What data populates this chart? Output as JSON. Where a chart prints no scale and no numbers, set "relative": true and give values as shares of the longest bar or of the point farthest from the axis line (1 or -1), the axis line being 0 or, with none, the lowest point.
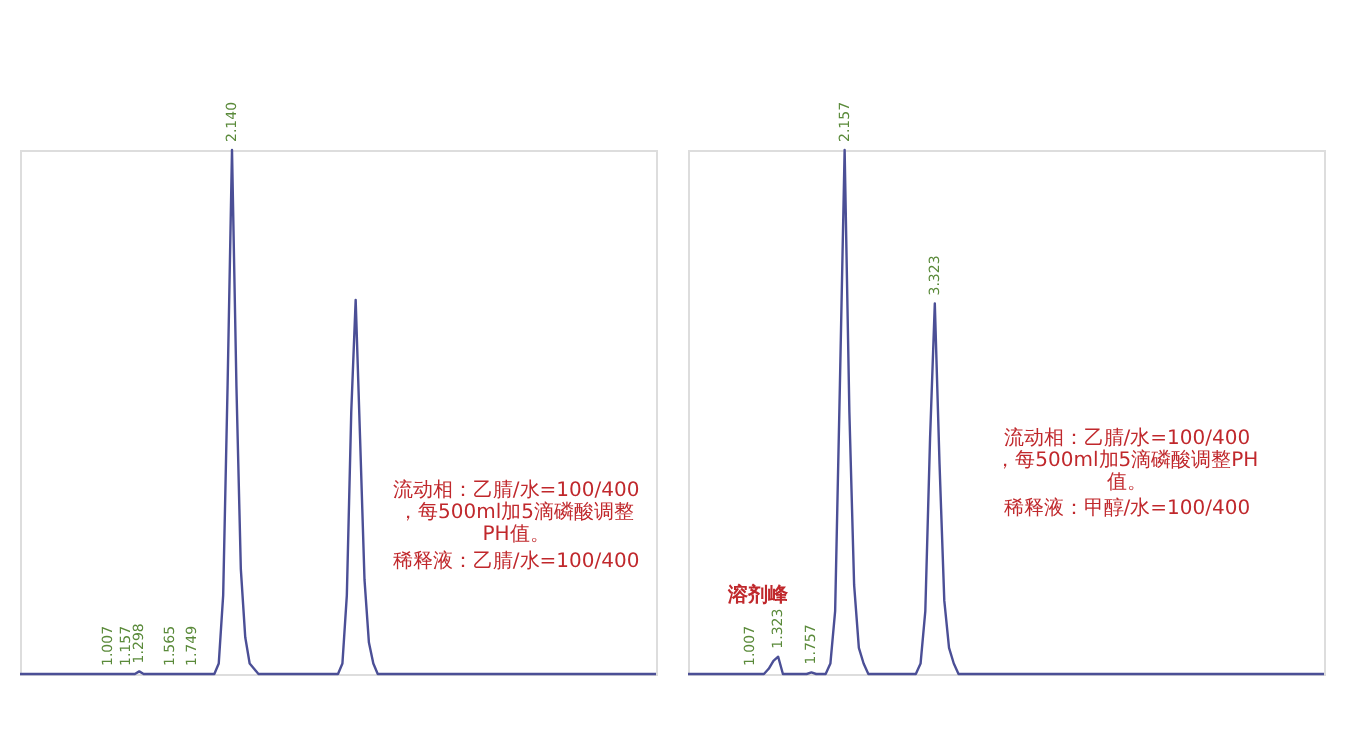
{
  "chart_data": [
    {
      "type": "line",
      "relative": true,
      "tick_labels": false,
      "grid": false,
      "legend": false,
      "marker": "none",
      "categories": [
        null,
        null,
        null,
        null,
        null,
        null,
        null,
        null,
        null,
        null,
        null,
        null,
        null,
        null,
        null,
        null,
        null,
        null,
        null,
        null,
        null,
        null,
        null,
        null,
        null,
        null,
        null,
        null,
        null,
        null,
        null,
        null,
        null,
        null,
        null,
        null,
        null,
        null,
        null,
        null,
        null,
        null,
        null,
        null,
        null,
        null,
        null,
        null,
        null,
        null,
        null,
        null,
        null,
        null,
        null,
        null,
        null,
        null,
        null,
        null,
        null,
        null,
        null,
        null,
        null,
        null,
        null,
        null,
        null,
        null,
        null,
        null,
        null,
        null,
        null,
        null,
        null,
        null,
        null,
        null,
        null,
        null,
        null,
        null,
        null,
        null,
        null,
        null,
        null,
        null,
        null,
        null,
        null,
        null,
        null,
        null,
        null,
        null,
        null,
        null,
        null,
        null,
        null,
        null,
        null,
        null,
        null,
        null,
        null,
        null,
        null,
        null,
        null,
        null,
        null,
        null,
        null,
        null,
        null,
        null,
        null,
        null,
        null,
        null,
        null,
        null,
        null,
        null,
        null,
        null,
        null,
        null,
        null,
        null,
        null,
        null,
        null,
        null,
        null,
        null,
        null,
        null,
        null,
        null,
        null
      ],
      "series": [
        {
          "color": "#4b4f96",
          "values": [
            0,
            0,
            0,
            0,
            0,
            0,
            0,
            0,
            0,
            0,
            0,
            0,
            0,
            0,
            0,
            0,
            0,
            0,
            0,
            0,
            0,
            0,
            0,
            0,
            0,
            0,
            0,
            0.005,
            0,
            0,
            0,
            0,
            0,
            0,
            0,
            0,
            0,
            0,
            0,
            0,
            0,
            0,
            0,
            0,
            0,
            0.02,
            0.15,
            0.55,
            1,
            0.55,
            0.2,
            0.07,
            0.02,
            0.01,
            0,
            0,
            0,
            0,
            0,
            0,
            0,
            0,
            0,
            0,
            0,
            0,
            0,
            0,
            0,
            0,
            0,
            0,
            0,
            0.02,
            0.15,
            0.5,
            0.714,
            0.45,
            0.18,
            0.06,
            0.02,
            0,
            0,
            0,
            0,
            0,
            0,
            0,
            0,
            0,
            0,
            0,
            0,
            0,
            0,
            0,
            0,
            0,
            0,
            0,
            0,
            0,
            0,
            0,
            0,
            0,
            0,
            0,
            0,
            0,
            0,
            0,
            0,
            0,
            0,
            0,
            0,
            0,
            0,
            0,
            0,
            0,
            0,
            0,
            0,
            0,
            0,
            0,
            0,
            0,
            0,
            0,
            0,
            0,
            0,
            0,
            0,
            0,
            0,
            0,
            0,
            0,
            0,
            0,
            0
          ]
        }
      ],
      "annotations": [
        "1.007",
        "1.157",
        "1.298",
        "1.565",
        "1.749",
        "2.140",
        "流动相：乙腈/水=100/400，每500ml加5滴磷酸调整PH值。",
        "稀释液：乙腈/水=100/400"
      ]
    },
    {
      "type": "line",
      "relative": true,
      "tick_labels": false,
      "grid": false,
      "legend": false,
      "marker": "none",
      "categories": [
        null,
        null,
        null,
        null,
        null,
        null,
        null,
        null,
        null,
        null,
        null,
        null,
        null,
        null,
        null,
        null,
        null,
        null,
        null,
        null,
        null,
        null,
        null,
        null,
        null,
        null,
        null,
        null,
        null,
        null,
        null,
        null,
        null,
        null,
        null,
        null,
        null,
        null,
        null,
        null,
        null,
        null,
        null,
        null,
        null,
        null,
        null,
        null,
        null,
        null,
        null,
        null,
        null,
        null,
        null,
        null,
        null,
        null,
        null,
        null,
        null,
        null,
        null,
        null,
        null,
        null,
        null,
        null,
        null,
        null,
        null,
        null,
        null,
        null,
        null,
        null,
        null,
        null,
        null,
        null,
        null,
        null,
        null,
        null,
        null,
        null,
        null,
        null,
        null,
        null,
        null,
        null,
        null,
        null,
        null,
        null,
        null,
        null,
        null,
        null,
        null,
        null,
        null,
        null,
        null,
        null,
        null,
        null,
        null,
        null,
        null,
        null,
        null,
        null,
        null,
        null,
        null,
        null,
        null,
        null,
        null,
        null,
        null,
        null,
        null,
        null,
        null,
        null,
        null,
        null,
        null,
        null,
        null,
        null,
        null
      ],
      "series": [
        {
          "color": "#4b4f96",
          "values": [
            0,
            0,
            0,
            0,
            0,
            0,
            0,
            0,
            0,
            0,
            0,
            0,
            0,
            0,
            0,
            0,
            0,
            0.01,
            0.025,
            0.033,
            0,
            0,
            0,
            0,
            0,
            0,
            0.003,
            0,
            0,
            0,
            0.02,
            0.12,
            0.55,
            1,
            0.5,
            0.17,
            0.05,
            0.02,
            0,
            0,
            0,
            0,
            0,
            0,
            0,
            0,
            0,
            0,
            0,
            0.02,
            0.12,
            0.45,
            0.707,
            0.4,
            0.14,
            0.05,
            0.02,
            0,
            0,
            0,
            0,
            0,
            0,
            0,
            0,
            0,
            0,
            0,
            0,
            0,
            0,
            0,
            0,
            0,
            0,
            0,
            0,
            0,
            0,
            0,
            0,
            0,
            0,
            0,
            0,
            0,
            0,
            0,
            0,
            0,
            0,
            0,
            0,
            0,
            0,
            0,
            0,
            0,
            0,
            0,
            0,
            0,
            0,
            0,
            0,
            0,
            0,
            0,
            0,
            0,
            0,
            0,
            0,
            0,
            0,
            0,
            0,
            0,
            0,
            0,
            0,
            0,
            0,
            0,
            0,
            0,
            0,
            0,
            0,
            0,
            0,
            0,
            0,
            0,
            0
          ]
        }
      ],
      "annotations": [
        "1.007",
        "1.323",
        "1.757",
        "2.157",
        "3.323",
        "溶剂峰",
        "流动相：乙腈/水=100/400，每500ml加5滴磷酸调整PH值。",
        "稀释液：甲醇/水=100/400"
      ]
    }
  ]
}
